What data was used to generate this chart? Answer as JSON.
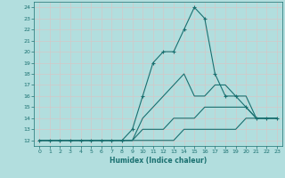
{
  "xlabel": "Humidex (Indice chaleur)",
  "ylabel": "",
  "xlim": [
    -0.5,
    23.5
  ],
  "ylim": [
    11.5,
    24.5
  ],
  "yticks": [
    12,
    13,
    14,
    15,
    16,
    17,
    18,
    19,
    20,
    21,
    22,
    23,
    24
  ],
  "xticks": [
    0,
    1,
    2,
    3,
    4,
    5,
    6,
    7,
    8,
    9,
    10,
    11,
    12,
    13,
    14,
    15,
    16,
    17,
    18,
    19,
    20,
    21,
    22,
    23
  ],
  "background_color": "#b2dede",
  "grid_color": "#c8e8e8",
  "line_color": "#1a7070",
  "lines": [
    {
      "x": [
        0,
        1,
        2,
        3,
        4,
        5,
        6,
        7,
        8,
        9,
        10,
        11,
        12,
        13,
        14,
        15,
        16,
        17,
        18,
        19,
        20,
        21,
        22,
        23
      ],
      "y": [
        12,
        12,
        12,
        12,
        12,
        12,
        12,
        12,
        12,
        13,
        16,
        19,
        20,
        20,
        22,
        24,
        23,
        18,
        16,
        16,
        15,
        14,
        14,
        14
      ],
      "marker": true
    },
    {
      "x": [
        0,
        1,
        2,
        3,
        4,
        5,
        6,
        7,
        8,
        9,
        10,
        11,
        12,
        13,
        14,
        15,
        16,
        17,
        18,
        19,
        20,
        21,
        22,
        23
      ],
      "y": [
        12,
        12,
        12,
        12,
        12,
        12,
        12,
        12,
        12,
        12,
        14,
        15,
        16,
        17,
        18,
        16,
        16,
        17,
        17,
        16,
        16,
        14,
        14,
        14
      ],
      "marker": false
    },
    {
      "x": [
        0,
        1,
        2,
        3,
        4,
        5,
        6,
        7,
        8,
        9,
        10,
        11,
        12,
        13,
        14,
        15,
        16,
        17,
        18,
        19,
        20,
        21,
        22,
        23
      ],
      "y": [
        12,
        12,
        12,
        12,
        12,
        12,
        12,
        12,
        12,
        12,
        13,
        13,
        13,
        14,
        14,
        14,
        15,
        15,
        15,
        15,
        15,
        14,
        14,
        14
      ],
      "marker": false
    },
    {
      "x": [
        0,
        1,
        2,
        3,
        4,
        5,
        6,
        7,
        8,
        9,
        10,
        11,
        12,
        13,
        14,
        15,
        16,
        17,
        18,
        19,
        20,
        21,
        22,
        23
      ],
      "y": [
        12,
        12,
        12,
        12,
        12,
        12,
        12,
        12,
        12,
        12,
        12,
        12,
        12,
        12,
        13,
        13,
        13,
        13,
        13,
        13,
        14,
        14,
        14,
        14
      ],
      "marker": false
    }
  ]
}
